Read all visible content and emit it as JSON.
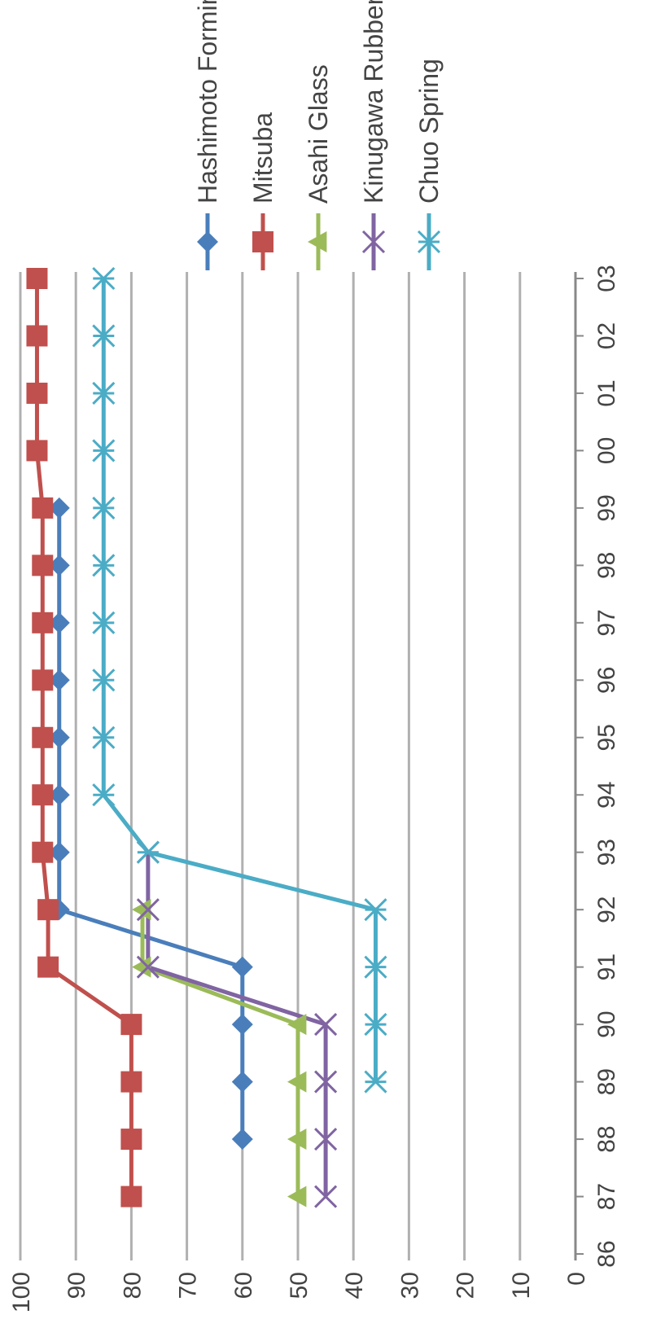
{
  "chart_data": {
    "type": "line",
    "title": "",
    "xlabel": "",
    "ylabel": "",
    "categories": [
      "86",
      "87",
      "88",
      "89",
      "90",
      "91",
      "92",
      "93",
      "94",
      "95",
      "96",
      "97",
      "98",
      "99",
      "00",
      "01",
      "02",
      "03"
    ],
    "ylim": [
      0,
      100
    ],
    "y_ticks": [
      "0",
      "10",
      "20",
      "30",
      "40",
      "50",
      "60",
      "70",
      "80",
      "90",
      "100"
    ],
    "grid": "horizontal major gridlines",
    "orientation": "image rotated 90 degrees counter-clockwise",
    "legend_position": "right",
    "series": [
      {
        "name": "Hashimoto Forming",
        "color": "#4a7ebb",
        "marker": "diamond",
        "values": [
          null,
          null,
          60,
          60,
          60,
          60,
          93,
          93,
          93,
          93,
          93,
          93,
          93,
          93,
          null,
          null,
          null,
          null
        ]
      },
      {
        "name": "Mitsuba",
        "color": "#c0504d",
        "marker": "square",
        "values": [
          null,
          80,
          80,
          80,
          80,
          95,
          95,
          96,
          96,
          96,
          96,
          96,
          96,
          96,
          97,
          97,
          97,
          97
        ]
      },
      {
        "name": "Asahi Glass",
        "color": "#9bbb59",
        "marker": "triangle",
        "values": [
          null,
          50,
          50,
          50,
          50,
          78,
          78,
          null,
          null,
          null,
          null,
          null,
          null,
          null,
          null,
          null,
          null,
          null
        ]
      },
      {
        "name": "Kinugawa Rubber",
        "color": "#8064a2",
        "marker": "x",
        "values": [
          null,
          45,
          45,
          45,
          45,
          77,
          77,
          77,
          null,
          null,
          null,
          null,
          null,
          null,
          null,
          null,
          null,
          null
        ]
      },
      {
        "name": "Chuo Spring",
        "color": "#4bacc6",
        "marker": "star",
        "values": [
          null,
          null,
          null,
          36,
          36,
          36,
          36,
          77,
          85,
          85,
          85,
          85,
          85,
          85,
          85,
          85,
          85,
          85
        ]
      }
    ]
  }
}
